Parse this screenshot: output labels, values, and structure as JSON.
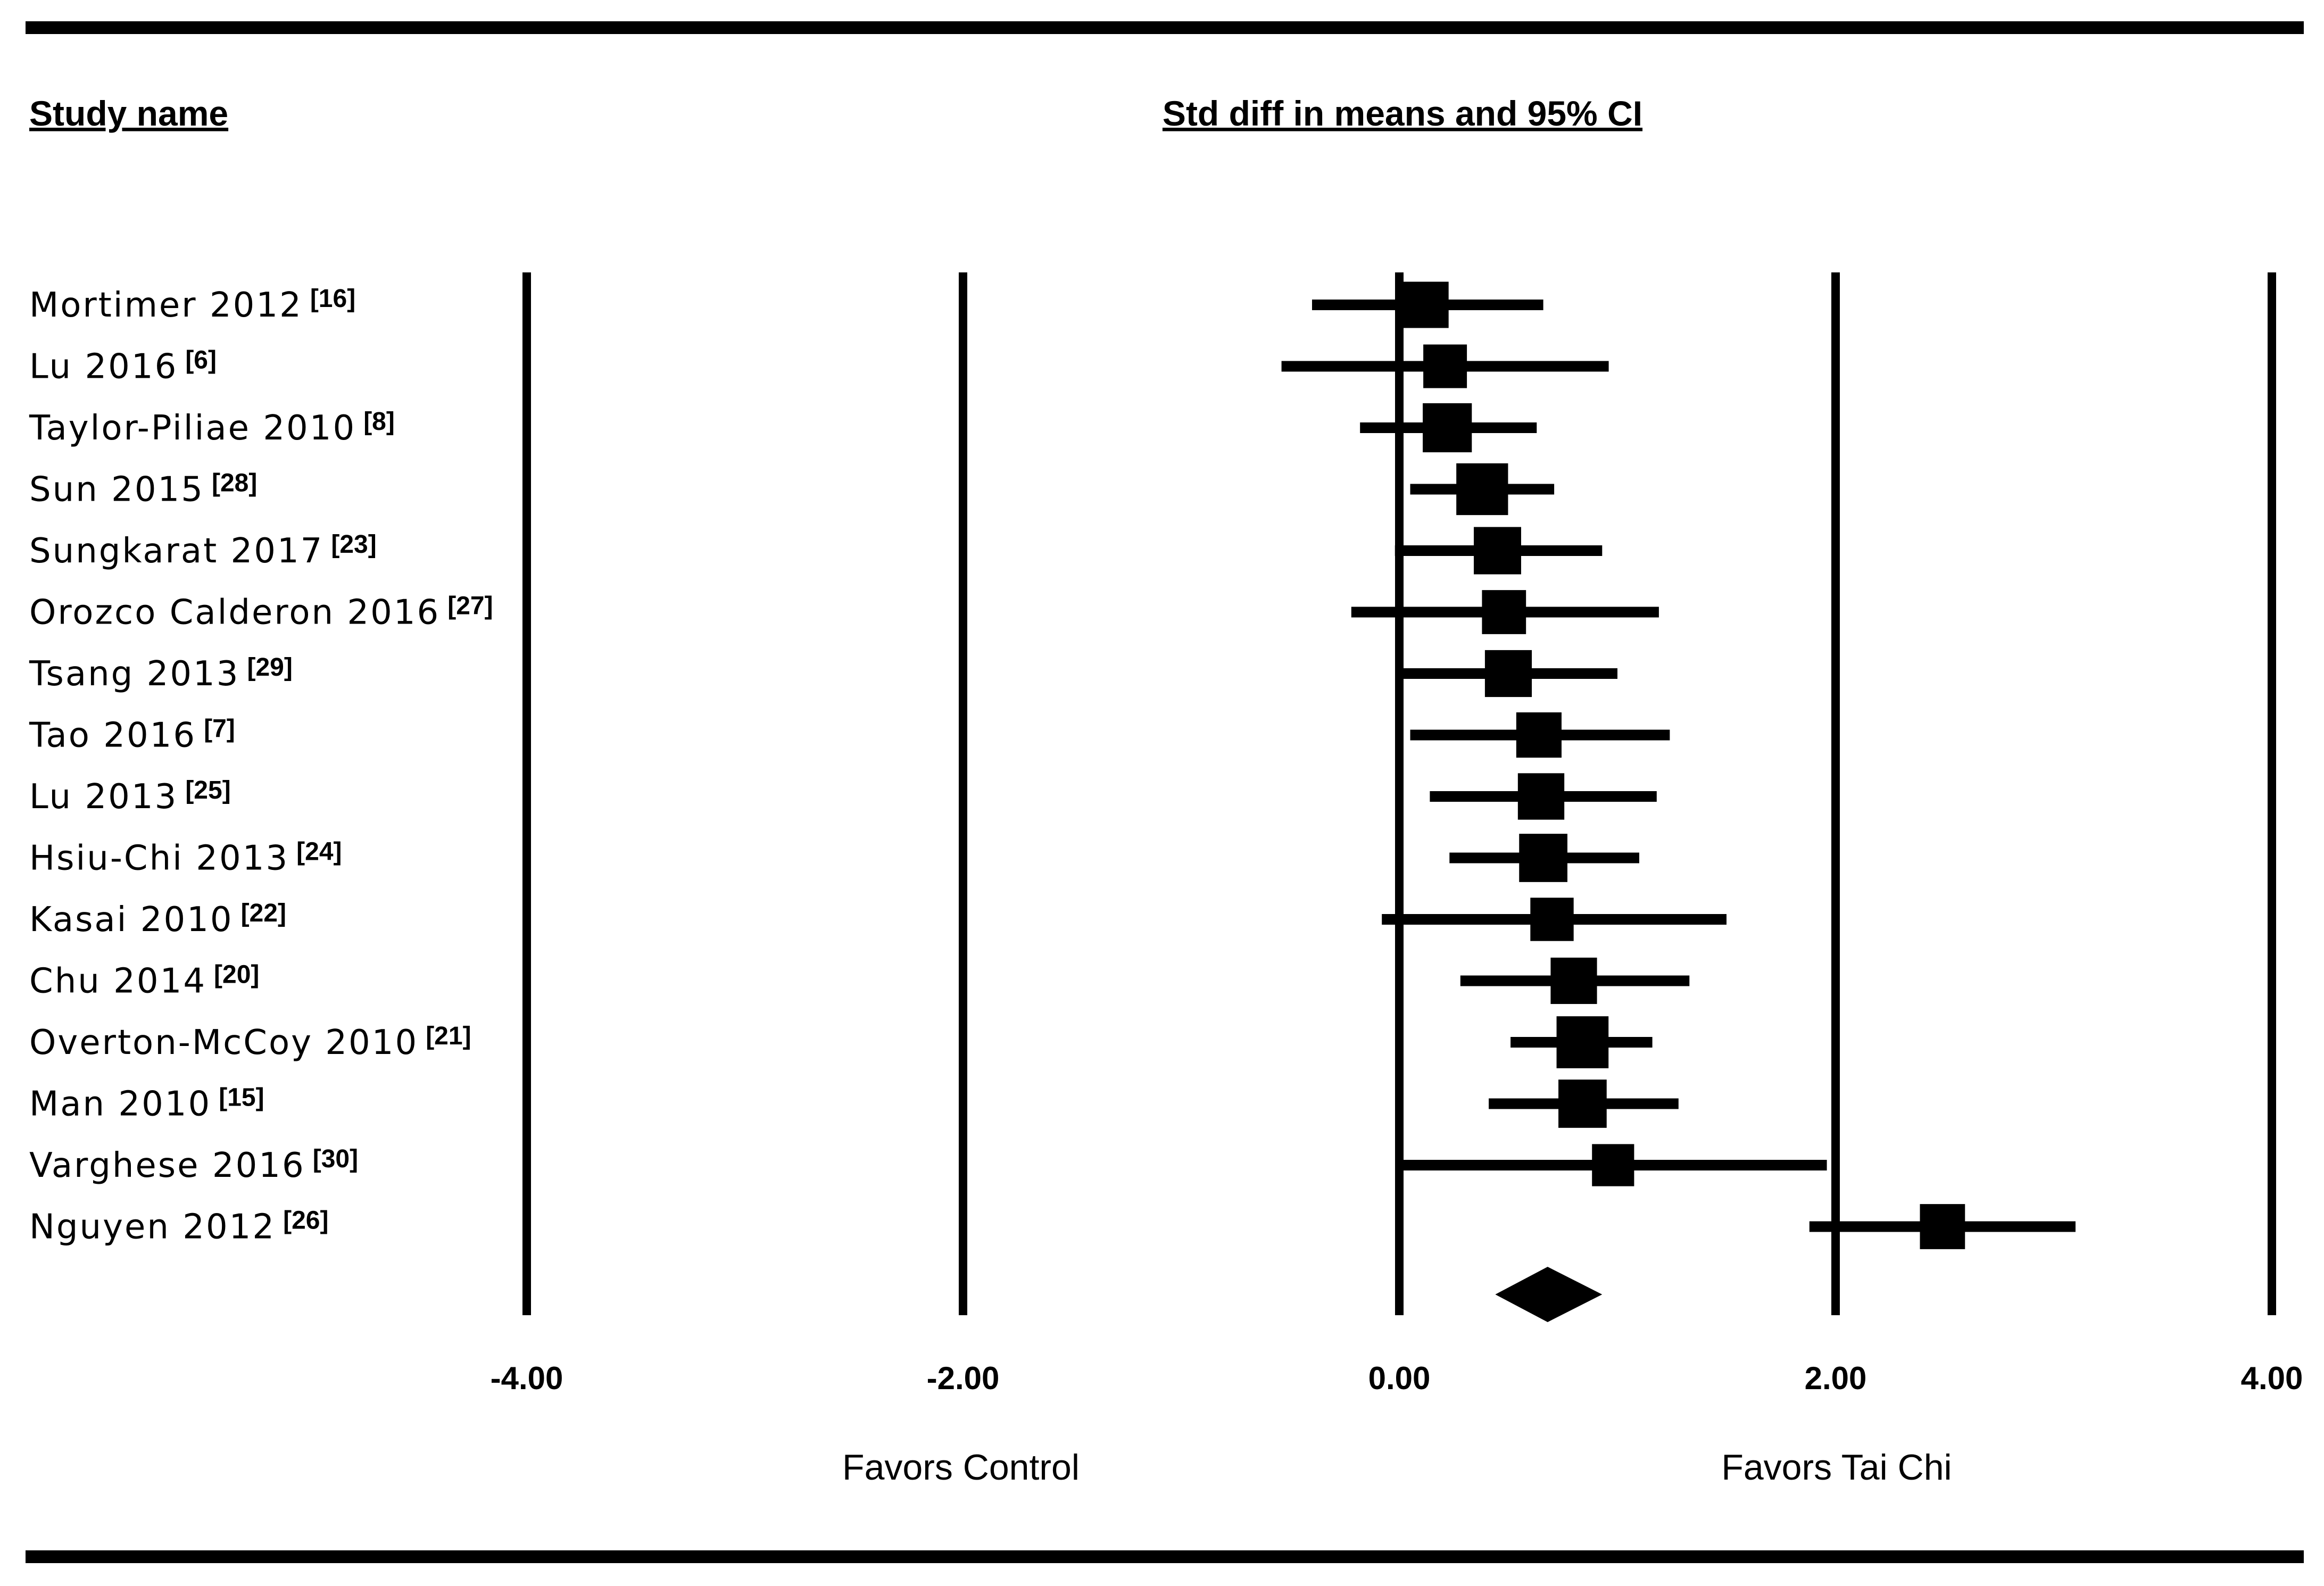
{
  "chart_data": {
    "type": "forest",
    "column_header_left": "Study name",
    "column_header_right": "Std diff in means and 95% CI",
    "studies": [
      {
        "name": "Mortimer 2012",
        "ref": "[16]",
        "estimate": 0.12,
        "lower": -0.4,
        "upper": 0.66
      },
      {
        "name": "Lu 2016",
        "ref": "[6]",
        "estimate": 0.21,
        "lower": -0.54,
        "upper": 0.96
      },
      {
        "name": "Taylor-Piliae 2010",
        "ref": "[8]",
        "estimate": 0.22,
        "lower": -0.18,
        "upper": 0.63
      },
      {
        "name": "Sun 2015",
        "ref": "[28]",
        "estimate": 0.38,
        "lower": 0.05,
        "upper": 0.71
      },
      {
        "name": "Sungkarat 2017",
        "ref": "[23]",
        "estimate": 0.45,
        "lower": -0.02,
        "upper": 0.93
      },
      {
        "name": "Orozco Calderon 2016",
        "ref": "[27]",
        "estimate": 0.48,
        "lower": -0.22,
        "upper": 1.19
      },
      {
        "name": "Tsang 2013",
        "ref": "[29]",
        "estimate": 0.5,
        "lower": 0.01,
        "upper": 1.0
      },
      {
        "name": "Tao 2016",
        "ref": "[7]",
        "estimate": 0.64,
        "lower": 0.05,
        "upper": 1.24
      },
      {
        "name": "Lu 2013",
        "ref": "[25]",
        "estimate": 0.65,
        "lower": 0.14,
        "upper": 1.18
      },
      {
        "name": "Hsiu-Chi 2013",
        "ref": "[24]",
        "estimate": 0.66,
        "lower": 0.23,
        "upper": 1.1
      },
      {
        "name": "Kasai 2010",
        "ref": "[22]",
        "estimate": 0.7,
        "lower": -0.08,
        "upper": 1.5
      },
      {
        "name": "Chu 2014",
        "ref": "[20]",
        "estimate": 0.8,
        "lower": 0.28,
        "upper": 1.33
      },
      {
        "name": "Overton-McCoy 2010",
        "ref": "[21]",
        "estimate": 0.84,
        "lower": 0.51,
        "upper": 1.16
      },
      {
        "name": "Man 2010",
        "ref": "[15]",
        "estimate": 0.84,
        "lower": 0.41,
        "upper": 1.28
      },
      {
        "name": "Varghese 2016",
        "ref": "[30]",
        "estimate": 0.98,
        "lower": 0.0,
        "upper": 1.96
      },
      {
        "name": "Nguyen 2012",
        "ref": "[26]",
        "estimate": 2.49,
        "lower": 1.88,
        "upper": 3.1
      }
    ],
    "summary": {
      "estimate": 0.68,
      "lower": 0.44,
      "upper": 0.93
    },
    "xlim": [
      -4,
      4
    ],
    "x_ticks": [
      -4,
      -2,
      0,
      2,
      4
    ],
    "x_tick_labels": [
      "-4.00",
      "-2.00",
      "0.00",
      "2.00",
      "4.00"
    ],
    "favors_left": "Favors Control",
    "favors_right": "Favors Tai Chi",
    "vertical_lines_at": [
      -4,
      -2,
      0,
      2,
      4
    ]
  }
}
